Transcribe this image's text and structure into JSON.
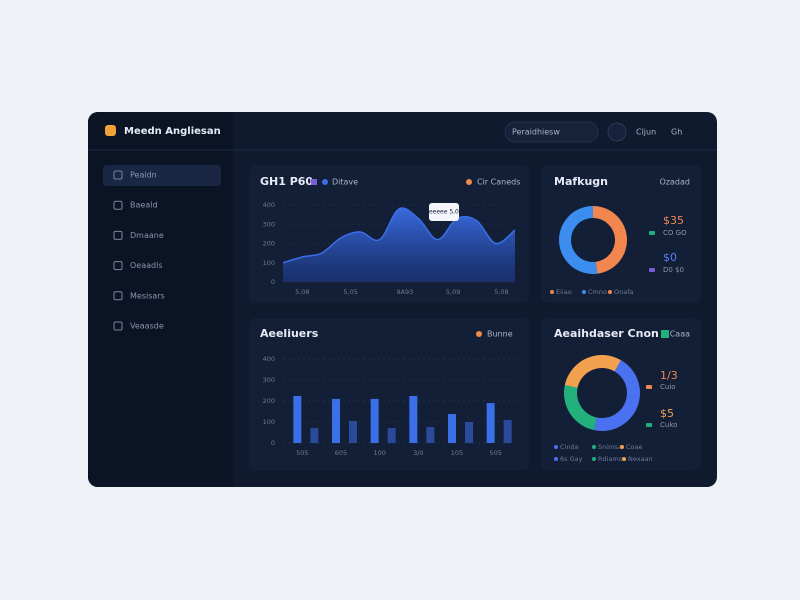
{
  "header": {
    "title": "Meedn Angliesan",
    "search": "Peraidhiesw",
    "user": "Cljun",
    "menu": "Gh"
  },
  "sidebar": {
    "items": [
      "Pealdn",
      "Baeald",
      "Dmaane",
      "Oeaadls",
      "Mesisars",
      "Veaasde"
    ]
  },
  "chart_data": [
    {
      "type": "area",
      "title": "GH1 P60",
      "x": [
        0,
        1,
        2,
        3,
        4,
        5,
        6,
        7,
        8,
        9,
        10,
        11,
        12
      ],
      "series": [
        {
          "name": "Ditave",
          "color": "#3b6fe8",
          "values": [
            100,
            130,
            150,
            230,
            260,
            220,
            380,
            330,
            220,
            330,
            320,
            200,
            270
          ]
        }
      ],
      "legend": [
        {
          "name": "Cir Caneds",
          "color": "#f08a4b"
        }
      ],
      "xlim": [
        0,
        12
      ],
      "xticks": [
        {
          "value": 1,
          "label": "5,08"
        },
        {
          "value": 3.5,
          "label": "5,05"
        },
        {
          "value": 6.3,
          "label": "9A93"
        },
        {
          "value": 8.8,
          "label": "5,09"
        },
        {
          "value": 11.3,
          "label": "5,08"
        }
      ],
      "ylim": [
        0,
        400
      ],
      "yticks": [
        0,
        100,
        200,
        300,
        400
      ],
      "grid": true,
      "tooltip": "eeeeee 5,00"
    },
    {
      "type": "donut",
      "title": "Mafkugn",
      "subtitle": "Ozadad",
      "values": [
        48,
        52
      ],
      "colors": [
        "#f2864f",
        "#3b8ef0"
      ],
      "annotations": [
        {
          "text": "$35",
          "color": "#f2864f"
        },
        {
          "text": "CO GO",
          "color": "#22b07d"
        },
        {
          "text": "$0",
          "color": "#5a7cf0"
        },
        {
          "text": "D0 $0",
          "color": "#7c5cd6"
        }
      ],
      "legend_texts": [
        "Eiiao",
        "Cmno",
        "Onafa"
      ]
    },
    {
      "type": "bar",
      "title": "Aeeliuers",
      "categories": [
        "505",
        "605",
        "100",
        "3/0",
        "105",
        "505"
      ],
      "series": [
        {
          "color": "#3b6fe8",
          "values": [
            224,
            210,
            210,
            224,
            138,
            190
          ]
        },
        {
          "color": "#2a4a9a",
          "values": [
            71,
            105,
            71,
            76,
            100,
            110
          ]
        }
      ],
      "legend": [
        {
          "name": "Bunne",
          "color": "#f08a4b"
        }
      ],
      "ylim": [
        0,
        400
      ],
      "yticks": [
        0,
        100,
        200,
        300,
        400
      ],
      "grid": true
    },
    {
      "type": "donut",
      "title": "Aeaihdaser Cnon",
      "subtitle": "Caaa",
      "values": [
        45,
        25,
        30
      ],
      "colors": [
        "#4a72f0",
        "#22b07d",
        "#f2a14f"
      ],
      "annotations": [
        {
          "text": "1/3",
          "color": "#f2864f"
        },
        {
          "text": "Cuio",
          "color": "#f2864f"
        },
        {
          "text": "$5",
          "color": "#f2a14f"
        },
        {
          "text": "Cuko",
          "color": "#22b07d"
        }
      ],
      "legend_texts": [
        "Cinda",
        "Snimsa",
        "Coae",
        "6s Gay",
        "Rdiamos",
        "Nexaan"
      ]
    }
  ]
}
